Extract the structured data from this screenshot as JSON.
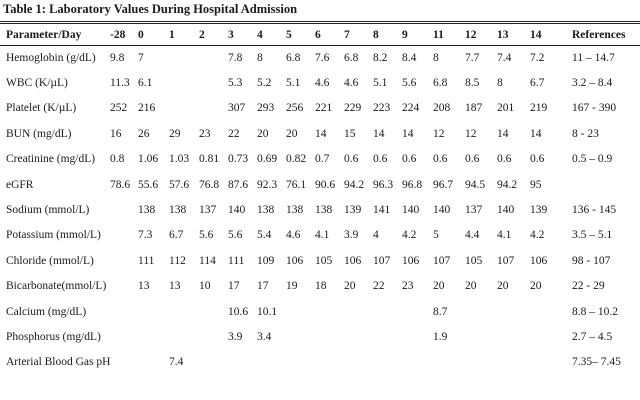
{
  "caption": "Table 1: Laboratory Values During Hospital Admission",
  "columns": [
    "Parameter/Day",
    "-28",
    "0",
    "1",
    "2",
    "3",
    "4",
    "5",
    "6",
    "7",
    "8",
    "9",
    "11",
    "12",
    "13",
    "14",
    "References"
  ],
  "rows": [
    [
      "Hemoglobin (g/dL)",
      "9.8",
      "7",
      "",
      "",
      "7.8",
      "8",
      "6.8",
      "7.6",
      "6.8",
      "8.2",
      "8.4",
      "8",
      "7.7",
      "7.4",
      "7.2",
      "11 – 14.7"
    ],
    [
      "WBC (K/µL)",
      "11.3",
      "6.1",
      "",
      "",
      "5.3",
      "5.2",
      "5.1",
      "4.6",
      "4.6",
      "5.1",
      "5.6",
      "6.8",
      "8.5",
      "8",
      "6.7",
      "3.2 – 8.4"
    ],
    [
      "Platelet (K/µL)",
      "252",
      "216",
      "",
      "",
      "307",
      "293",
      "256",
      "221",
      "229",
      "223",
      "224",
      "208",
      "187",
      "201",
      "219",
      "167 - 390"
    ],
    [
      "BUN (mg/dL)",
      "16",
      "26",
      "29",
      "23",
      "22",
      "20",
      "20",
      "14",
      "15",
      "14",
      "14",
      "12",
      "12",
      "14",
      "14",
      "8 - 23"
    ],
    [
      "Creatinine (mg/dL)",
      "0.8",
      "1.06",
      "1.03",
      "0.81",
      "0.73",
      "0.69",
      "0.82",
      "0.7",
      "0.6",
      "0.6",
      "0.6",
      "0.6",
      "0.6",
      "0.6",
      "0.6",
      "0.5 – 0.9"
    ],
    [
      "eGFR",
      "78.6",
      "55.6",
      "57.6",
      "76.8",
      "87.6",
      "92.3",
      "76.1",
      "90.6",
      "94.2",
      "96.3",
      "96.8",
      "96.7",
      "94.5",
      "94.2",
      "95",
      ""
    ],
    [
      "Sodium (mmol/L)",
      "",
      "138",
      "138",
      "137",
      "140",
      "138",
      "138",
      "138",
      "139",
      "141",
      "140",
      "140",
      "137",
      "140",
      "139",
      "136 - 145"
    ],
    [
      "Potassium (mmol/L)",
      "",
      "7.3",
      "6.7",
      "5.6",
      "5.6",
      "5.4",
      "4.6",
      "4.1",
      "3.9",
      "4",
      "4.2",
      "5",
      "4.4",
      "4.1",
      "4.2",
      "3.5 – 5.1"
    ],
    [
      "Chloride (mmol/L)",
      "",
      "111",
      "112",
      "114",
      "111",
      "109",
      "106",
      "105",
      "106",
      "107",
      "106",
      "107",
      "105",
      "107",
      "106",
      "98 - 107"
    ],
    [
      "Bicarbonate(mmol/L)",
      "",
      "13",
      "13",
      "10",
      "17",
      "17",
      "19",
      "18",
      "20",
      "22",
      "23",
      "20",
      "20",
      "20",
      "20",
      "22 - 29"
    ],
    [
      "Calcium (mg/dL)",
      "",
      "",
      "",
      "",
      "10.6",
      "10.1",
      "",
      "",
      "",
      "",
      "",
      "8.7",
      "",
      "",
      "",
      "8.8 – 10.2"
    ],
    [
      "Phosphorus (mg/dL)",
      "",
      "",
      "",
      "",
      "3.9",
      "3.4",
      "",
      "",
      "",
      "",
      "",
      "1.9",
      "",
      "",
      "",
      "2.7 – 4.5"
    ],
    [
      "Arterial Blood Gas pH",
      "",
      "",
      "7.4",
      "",
      "",
      "",
      "",
      "",
      "",
      "",
      "",
      "",
      "",
      "",
      "",
      "7.35– 7.45"
    ]
  ]
}
